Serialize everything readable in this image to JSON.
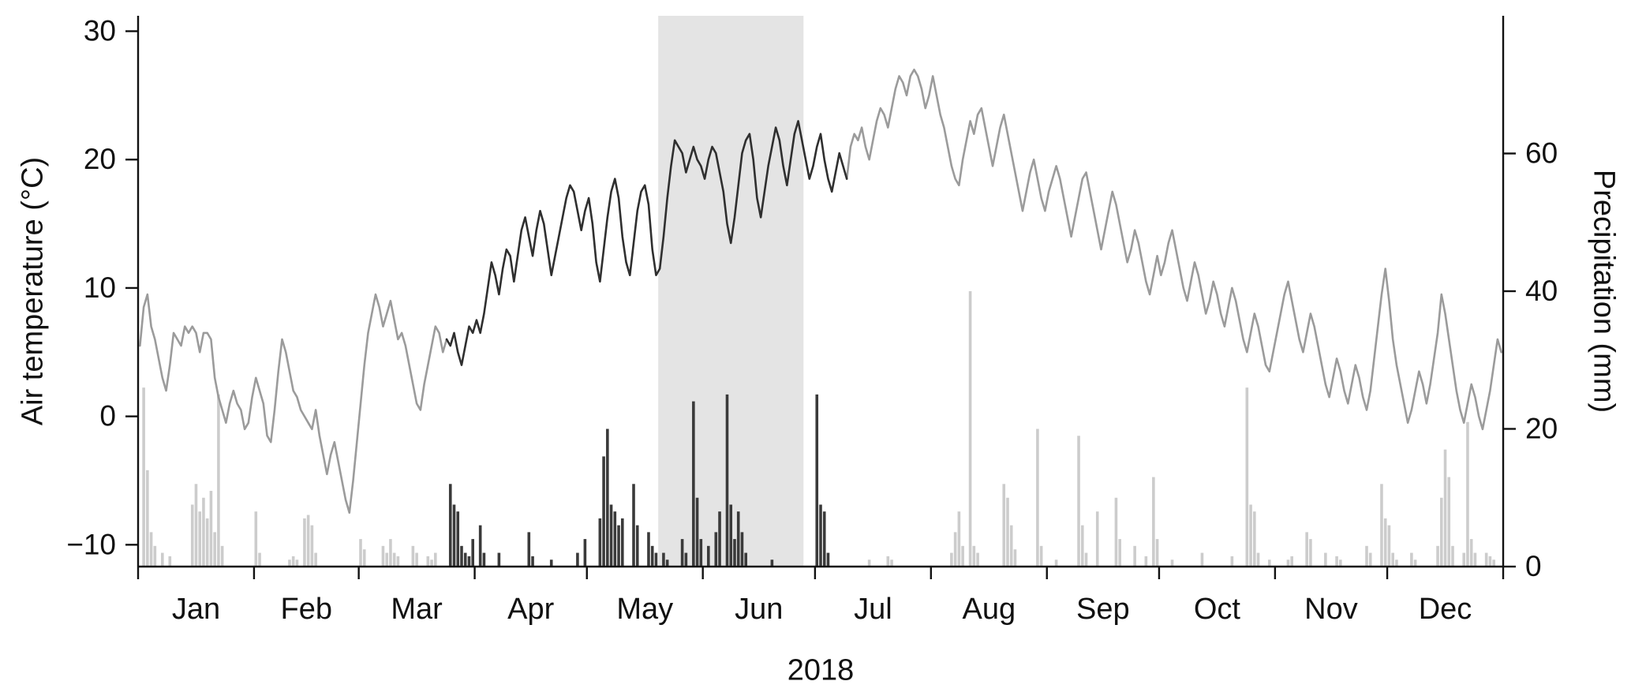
{
  "chart_data": {
    "type": "line",
    "title": "",
    "x_axis": {
      "label": "2018",
      "months": [
        "Jan",
        "Feb",
        "Mar",
        "Apr",
        "May",
        "Jun",
        "Jul",
        "Aug",
        "Sep",
        "Oct",
        "Nov",
        "Dec"
      ],
      "days_in_month": [
        31,
        28,
        31,
        30,
        31,
        30,
        31,
        31,
        30,
        31,
        30,
        31
      ]
    },
    "y_left": {
      "label": "Air temperature (°C)",
      "ticks": [
        -10,
        0,
        10,
        20,
        30
      ],
      "range": [
        -11.7,
        31.2
      ]
    },
    "y_right": {
      "label": "Precipitation (mm)",
      "ticks": [
        0,
        20,
        40,
        60
      ],
      "range": [
        0,
        80
      ]
    },
    "highlight_period": {
      "start_day": 140,
      "end_day": 178,
      "color": "#e4e4e4"
    },
    "dark_period": {
      "start_day": 83,
      "end_day": 190
    },
    "colors": {
      "line_gray": "#9b9b9b",
      "line_dark": "#2f2f2f",
      "bar_light": "#cccccc",
      "bar_dark": "#3a3a3a",
      "axis": "#111111",
      "text": "#111111"
    },
    "series": [
      {
        "name": "air-temperature",
        "type": "line",
        "axis": "left",
        "unit": "°C",
        "values": [
          5.5,
          8.5,
          9.5,
          7,
          6,
          4.5,
          3,
          2,
          4,
          6.5,
          6,
          5.5,
          7,
          6.5,
          7,
          6.5,
          5,
          6.5,
          6.5,
          6,
          3,
          1.5,
          0.5,
          -0.5,
          1,
          2,
          1,
          0.5,
          -1,
          -0.5,
          1.5,
          3,
          2,
          1,
          -1.5,
          -2,
          0.5,
          3.5,
          6,
          5,
          3.5,
          2,
          1.5,
          0.5,
          0,
          -0.5,
          -1,
          0.5,
          -1.5,
          -3,
          -4.5,
          -3,
          -2,
          -3.5,
          -5,
          -6.5,
          -7.5,
          -5,
          -2,
          1,
          4,
          6.5,
          8,
          9.5,
          8.5,
          7,
          8,
          9,
          7.5,
          6,
          6.5,
          5.5,
          4,
          2.5,
          1,
          0.5,
          2.5,
          4,
          5.5,
          7,
          6.5,
          5,
          6,
          5.5,
          6.5,
          5,
          4,
          5.5,
          7,
          6.5,
          7.5,
          6.5,
          8,
          10,
          12,
          11,
          9.5,
          11.5,
          13,
          12.5,
          10.5,
          12.5,
          14.5,
          15.5,
          14,
          12.5,
          14.5,
          16,
          15,
          13,
          11,
          12.5,
          14,
          15.5,
          17,
          18,
          17.5,
          16,
          14.5,
          16,
          17,
          15,
          12,
          10.5,
          13,
          15.5,
          17.5,
          18.5,
          17,
          14,
          12,
          11,
          13.5,
          16,
          17.5,
          18,
          16.5,
          13,
          11,
          11.5,
          14,
          17,
          19.5,
          21.5,
          21,
          20.5,
          19,
          20,
          21,
          20,
          19.5,
          18.5,
          20,
          21,
          20.5,
          19,
          17.5,
          15,
          13.5,
          15.5,
          18,
          20.5,
          21.5,
          22,
          20,
          17,
          15.5,
          17.5,
          19.5,
          21,
          22.5,
          21.5,
          19.5,
          18,
          20,
          22,
          23,
          21.5,
          20,
          18.5,
          19.5,
          21,
          22,
          20,
          18.5,
          17.5,
          19,
          20.5,
          19.5,
          18.5,
          21,
          22,
          21.5,
          22.5,
          21,
          20,
          21.5,
          23,
          24,
          23.5,
          22.5,
          24,
          25.5,
          26.5,
          26,
          25,
          26.5,
          27,
          26.5,
          25.5,
          24,
          25,
          26.5,
          25,
          23.5,
          22.5,
          21,
          19.5,
          18.5,
          18,
          20,
          21.5,
          23,
          22,
          23.5,
          24,
          22.5,
          21,
          19.5,
          21,
          22.5,
          23.5,
          22,
          20.5,
          19,
          17.5,
          16,
          17.5,
          19,
          20,
          18.5,
          17,
          16,
          17.5,
          18.5,
          19.5,
          18.5,
          17,
          15.5,
          14,
          15.5,
          17,
          18.5,
          19,
          17.5,
          16,
          14.5,
          13,
          14.5,
          16,
          17.5,
          16.5,
          15,
          13.5,
          12,
          13,
          14.5,
          13.5,
          12,
          10.5,
          9.5,
          11,
          12.5,
          11,
          12,
          13.5,
          14.5,
          13,
          11.5,
          10,
          9,
          10.5,
          12,
          11,
          9.5,
          8,
          9,
          10.5,
          9.5,
          8,
          7,
          8.5,
          10,
          9,
          7.5,
          6,
          5,
          6.5,
          8,
          7,
          5.5,
          4,
          3.5,
          5,
          6.5,
          8,
          9.5,
          10.5,
          9,
          7.5,
          6,
          5,
          6.5,
          8,
          7,
          5.5,
          4,
          2.5,
          1.5,
          3,
          4.5,
          3.5,
          2,
          1,
          2.5,
          4,
          3,
          1.5,
          0.5,
          2,
          4.5,
          7,
          9.5,
          11.5,
          9,
          6,
          4,
          2.5,
          1,
          -0.5,
          0.5,
          2,
          3.5,
          2.5,
          1,
          2.5,
          4.5,
          6.5,
          9.5,
          8,
          6,
          4,
          2,
          0.5,
          -0.5,
          1,
          2.5,
          1.5,
          0,
          -1,
          0.5,
          2,
          4,
          6,
          5
        ]
      },
      {
        "name": "precipitation",
        "type": "bar",
        "axis": "right",
        "unit": "mm",
        "values": [
          0,
          26,
          14,
          5,
          3,
          0,
          2,
          0,
          1.5,
          0,
          0,
          0,
          0,
          0,
          9,
          12,
          8,
          10,
          7,
          11,
          5,
          25,
          3,
          0,
          0,
          0,
          0,
          0,
          0,
          0,
          0,
          8,
          2,
          0,
          0,
          0,
          0,
          0,
          0,
          0,
          1,
          1.5,
          1,
          0,
          7,
          7.5,
          6,
          2,
          0,
          0,
          0,
          0,
          0,
          0,
          0,
          0,
          0,
          0,
          0,
          4,
          2.5,
          0,
          0,
          0,
          0,
          3,
          2,
          4,
          2,
          1.5,
          0,
          0,
          0,
          3,
          2,
          0,
          0,
          1.5,
          1,
          2,
          0,
          0,
          0,
          12,
          9,
          8,
          3,
          2,
          1.5,
          4,
          0,
          6,
          2,
          0,
          0,
          0,
          2,
          0,
          0,
          0,
          0,
          0,
          0,
          0,
          5,
          1.5,
          0,
          0,
          0,
          0,
          1,
          0,
          0,
          0,
          0,
          0,
          0,
          2,
          0,
          4,
          0,
          0,
          0,
          7,
          16,
          20,
          9,
          8,
          6,
          7,
          0,
          0,
          12,
          6,
          0,
          0,
          5,
          3,
          2,
          0,
          2,
          1,
          0,
          0,
          0,
          4,
          2,
          0,
          24,
          10,
          4,
          0,
          3,
          0,
          5,
          8,
          0,
          25,
          9,
          4,
          8,
          5,
          2,
          0,
          0,
          0,
          0,
          0,
          0,
          1,
          0,
          0,
          0,
          0,
          0,
          0,
          0,
          0,
          0,
          0,
          0,
          25,
          9,
          8,
          2,
          0,
          0,
          0,
          0,
          0,
          0,
          0,
          0,
          0,
          0,
          1,
          0,
          0,
          0,
          0,
          1.5,
          1,
          0,
          0,
          0,
          0,
          0,
          0,
          0,
          0,
          0,
          0,
          0,
          0,
          0,
          0,
          0,
          2,
          5,
          8,
          3,
          0,
          40,
          3,
          2,
          0,
          0,
          0,
          0,
          0,
          0,
          12,
          10,
          6,
          2.5,
          0,
          0,
          0,
          0,
          0,
          20,
          3,
          0,
          0,
          0,
          1,
          0,
          0,
          0,
          0,
          0,
          19,
          6,
          2,
          0,
          0,
          8,
          0,
          0,
          0,
          0,
          10,
          4,
          0,
          0,
          0,
          3,
          0,
          0,
          1.5,
          0,
          13,
          4,
          0,
          0,
          0,
          1,
          0,
          0,
          0,
          0,
          0,
          0,
          0,
          2,
          0,
          0,
          0,
          0,
          0,
          0,
          0,
          1.5,
          0,
          0,
          0,
          26,
          9,
          8,
          2,
          0,
          0,
          1,
          0,
          0,
          0,
          0,
          1,
          1.5,
          0,
          0,
          0,
          5,
          4,
          0,
          0,
          0,
          2,
          0,
          0,
          1.5,
          1,
          0,
          0,
          0,
          0,
          0,
          0,
          3,
          2,
          0,
          0,
          12,
          7,
          6,
          2,
          1,
          0,
          0,
          0,
          2,
          1,
          0,
          0,
          0,
          0,
          0,
          3,
          10,
          17,
          13,
          3,
          0,
          0,
          2,
          21,
          4,
          2,
          0,
          0,
          2,
          1.5,
          1,
          0,
          0
        ]
      }
    ]
  }
}
